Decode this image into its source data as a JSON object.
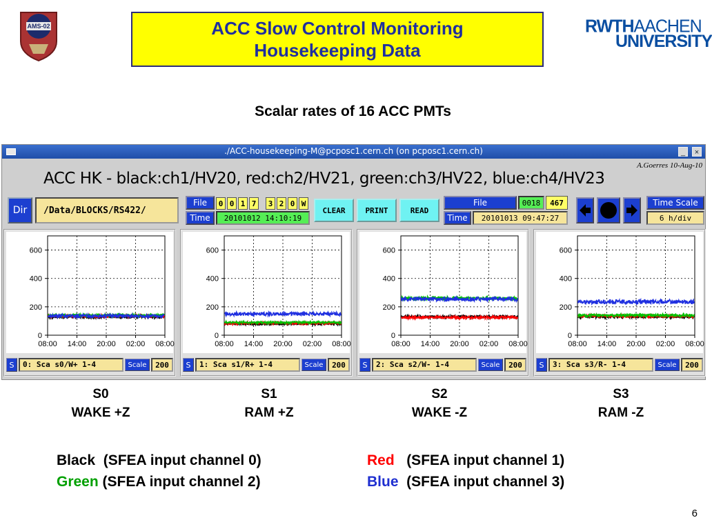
{
  "slide": {
    "title_line1": "ACC Slow Control Monitoring",
    "title_line2": "Housekeeping Data",
    "subtitle": "Scalar rates of 16 ACC PMTs",
    "ams_logo_text": "AMS-02",
    "rwth_logo": {
      "part1": "RWTH",
      "part2": "AACHEN",
      "part3": "UNIVERSITY"
    },
    "page_number": "6",
    "title_color": "#1f2f9f",
    "title_bg": "#ffff00"
  },
  "window": {
    "title": "./ACC-housekeeping-M@pcposc1.cern.ch  (on pcposc1.cern.ch)",
    "minimize": "_",
    "close": "×",
    "hk_title": "ACC HK - black:ch1/HV20, red:ch2/HV21, green:ch3/HV22, blue:ch4/HV23",
    "author": "A.Goerres 10-Aug-10",
    "dir_button": "Dir",
    "dir_path": "/Data/BLOCKS/RS422/",
    "file_label": "File",
    "time_label": "Time",
    "file_digits": [
      "0",
      "0",
      "1",
      "7",
      "3",
      "2",
      "0",
      "W"
    ],
    "start_time": "20101012 14:10:19",
    "clear_button": "CLEAR",
    "print_button": "PRINT",
    "read_button": "READ",
    "file2_label": "File",
    "file2_value": "0018",
    "file2_count": "467",
    "time2_label": "Time",
    "end_time": "20101013 09:47:27",
    "time_scale_label": "Time Scale",
    "time_scale_value": "6 h/div"
  },
  "panels": [
    {
      "s_btn": "S",
      "name": "0: Sca s0/W+ 1-4",
      "scale_label": "Scale",
      "scale_value": "200"
    },
    {
      "s_btn": "S",
      "name": "1: Sca s1/R+ 1-4",
      "scale_label": "Scale",
      "scale_value": "200"
    },
    {
      "s_btn": "S",
      "name": "2: Sca s2/W- 1-4",
      "scale_label": "Scale",
      "scale_value": "200"
    },
    {
      "s_btn": "S",
      "name": "3: Sca s3/R- 1-4",
      "scale_label": "Scale",
      "scale_value": "200"
    }
  ],
  "captions": [
    {
      "line1": "S0",
      "line2": "WAKE +Z"
    },
    {
      "line1": "S1",
      "line2": "RAM +Z"
    },
    {
      "line1": "S2",
      "line2": "WAKE -Z"
    },
    {
      "line1": "S3",
      "line2": "RAM -Z"
    }
  ],
  "legend": {
    "black_word": "Black",
    "black_text": "  (SFEA input channel 0)",
    "red_word": "Red",
    "red_text": "   (SFEA input channel 1)",
    "green_word": "Green",
    "green_text": " (SFEA input channel 2)",
    "blue_word": "Blue",
    "blue_text": "  (SFEA input channel 3)",
    "colors": {
      "black": "#000000",
      "red": "#ff0000",
      "green": "#00a000",
      "blue": "#1f2fd0"
    }
  },
  "chart_data": [
    {
      "type": "line",
      "title": "0: Sca s0/W+ 1-4",
      "x": [
        "08:00",
        "14:00",
        "20:00",
        "02:00",
        "08:00"
      ],
      "ylim": [
        0,
        700
      ],
      "yticks": [
        "0",
        "200",
        "400",
        "600"
      ],
      "grid": true,
      "series": [
        {
          "name": "black:ch1/HV20",
          "color": "#000000",
          "mean": 130,
          "spread": 20
        },
        {
          "name": "red:ch2/HV21",
          "color": "#ff0000",
          "mean": 135,
          "spread": 20
        },
        {
          "name": "green:ch3/HV22",
          "color": "#00c000",
          "mean": 140,
          "spread": 20
        },
        {
          "name": "blue:ch4/HV23",
          "color": "#1f2fe0",
          "mean": 135,
          "spread": 25
        }
      ]
    },
    {
      "type": "line",
      "title": "1: Sca s1/R+ 1-4",
      "x": [
        "08:00",
        "14:00",
        "20:00",
        "02:00",
        "08:00"
      ],
      "ylim": [
        0,
        700
      ],
      "yticks": [
        "0",
        "200",
        "400",
        "600"
      ],
      "grid": true,
      "series": [
        {
          "name": "black:ch1/HV20",
          "color": "#000000",
          "mean": 80,
          "spread": 15
        },
        {
          "name": "red:ch2/HV21",
          "color": "#ff0000",
          "mean": 85,
          "spread": 15
        },
        {
          "name": "green:ch3/HV22",
          "color": "#00c000",
          "mean": 90,
          "spread": 15
        },
        {
          "name": "blue:ch4/HV23",
          "color": "#1f2fe0",
          "mean": 150,
          "spread": 25
        }
      ]
    },
    {
      "type": "line",
      "title": "2: Sca s2/W- 1-4",
      "x": [
        "08:00",
        "14:00",
        "20:00",
        "02:00",
        "08:00"
      ],
      "ylim": [
        0,
        700
      ],
      "yticks": [
        "0",
        "200",
        "400",
        "600"
      ],
      "grid": true,
      "series": [
        {
          "name": "black:ch1/HV20",
          "color": "#000000",
          "mean": 130,
          "spread": 20
        },
        {
          "name": "red:ch2/HV21",
          "color": "#ff0000",
          "mean": 125,
          "spread": 20
        },
        {
          "name": "green:ch3/HV22",
          "color": "#00c000",
          "mean": 260,
          "spread": 25
        },
        {
          "name": "blue:ch4/HV23",
          "color": "#1f2fe0",
          "mean": 255,
          "spread": 30
        }
      ]
    },
    {
      "type": "line",
      "title": "3: Sca s3/R- 1-4",
      "x": [
        "08:00",
        "14:00",
        "20:00",
        "02:00",
        "08:00"
      ],
      "ylim": [
        0,
        700
      ],
      "yticks": [
        "0",
        "200",
        "400",
        "600"
      ],
      "grid": true,
      "series": [
        {
          "name": "black:ch1/HV20",
          "color": "#000000",
          "mean": 130,
          "spread": 20
        },
        {
          "name": "red:ch2/HV21",
          "color": "#ff0000",
          "mean": 135,
          "spread": 20
        },
        {
          "name": "green:ch3/HV22",
          "color": "#00c000",
          "mean": 140,
          "spread": 20
        },
        {
          "name": "blue:ch4/HV23",
          "color": "#1f2fe0",
          "mean": 235,
          "spread": 30
        }
      ]
    }
  ]
}
